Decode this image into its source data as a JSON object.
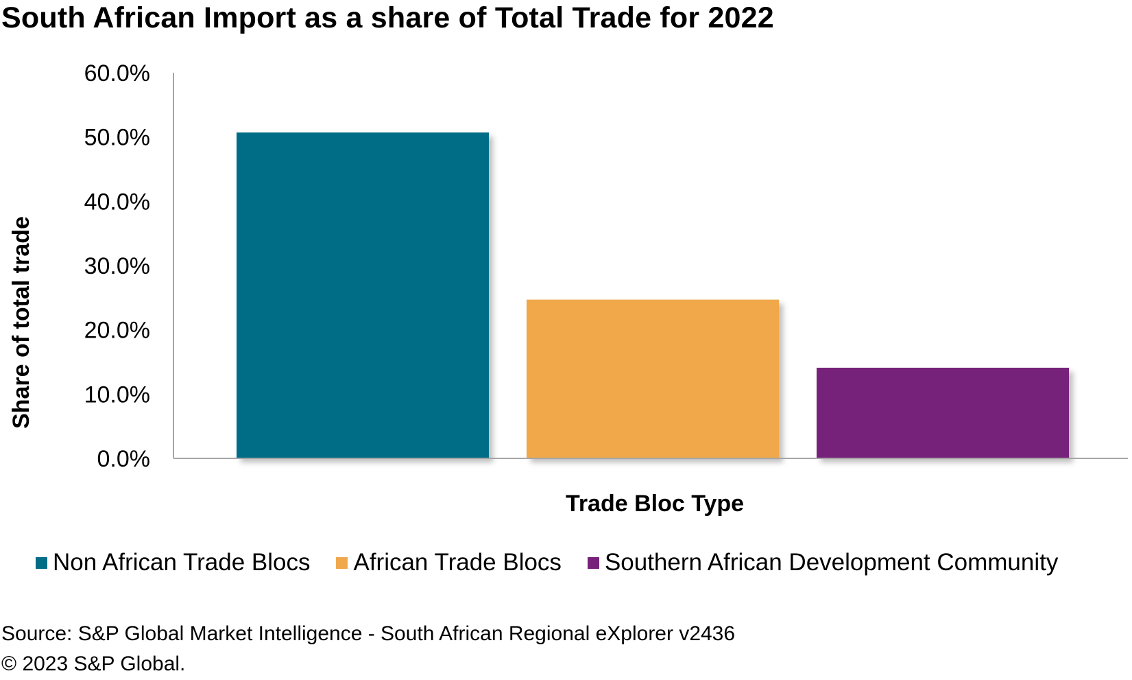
{
  "chart_data": {
    "type": "bar",
    "title": "South African Import as a share of Total Trade for 2022",
    "xlabel": "Trade Bloc Type",
    "ylabel": "Share of total trade",
    "ylim": [
      0,
      60
    ],
    "y_ticks": [
      "0.0%",
      "10.0%",
      "20.0%",
      "30.0%",
      "40.0%",
      "50.0%",
      "60.0%"
    ],
    "grid": false,
    "legend_position": "bottom",
    "series": [
      {
        "name": "Non African Trade Blocs",
        "values": [
          50.7
        ],
        "color": "#006d86"
      },
      {
        "name": "African Trade Blocs",
        "values": [
          24.7
        ],
        "color": "#f0a84c"
      },
      {
        "name": "Southern African Development Community",
        "values": [
          14.1
        ],
        "color": "#77217a"
      }
    ]
  },
  "source": {
    "line1": "Source: S&P Global Market Intelligence - South African Regional eXplorer v2436",
    "line2": "© 2023 S&P Global."
  }
}
